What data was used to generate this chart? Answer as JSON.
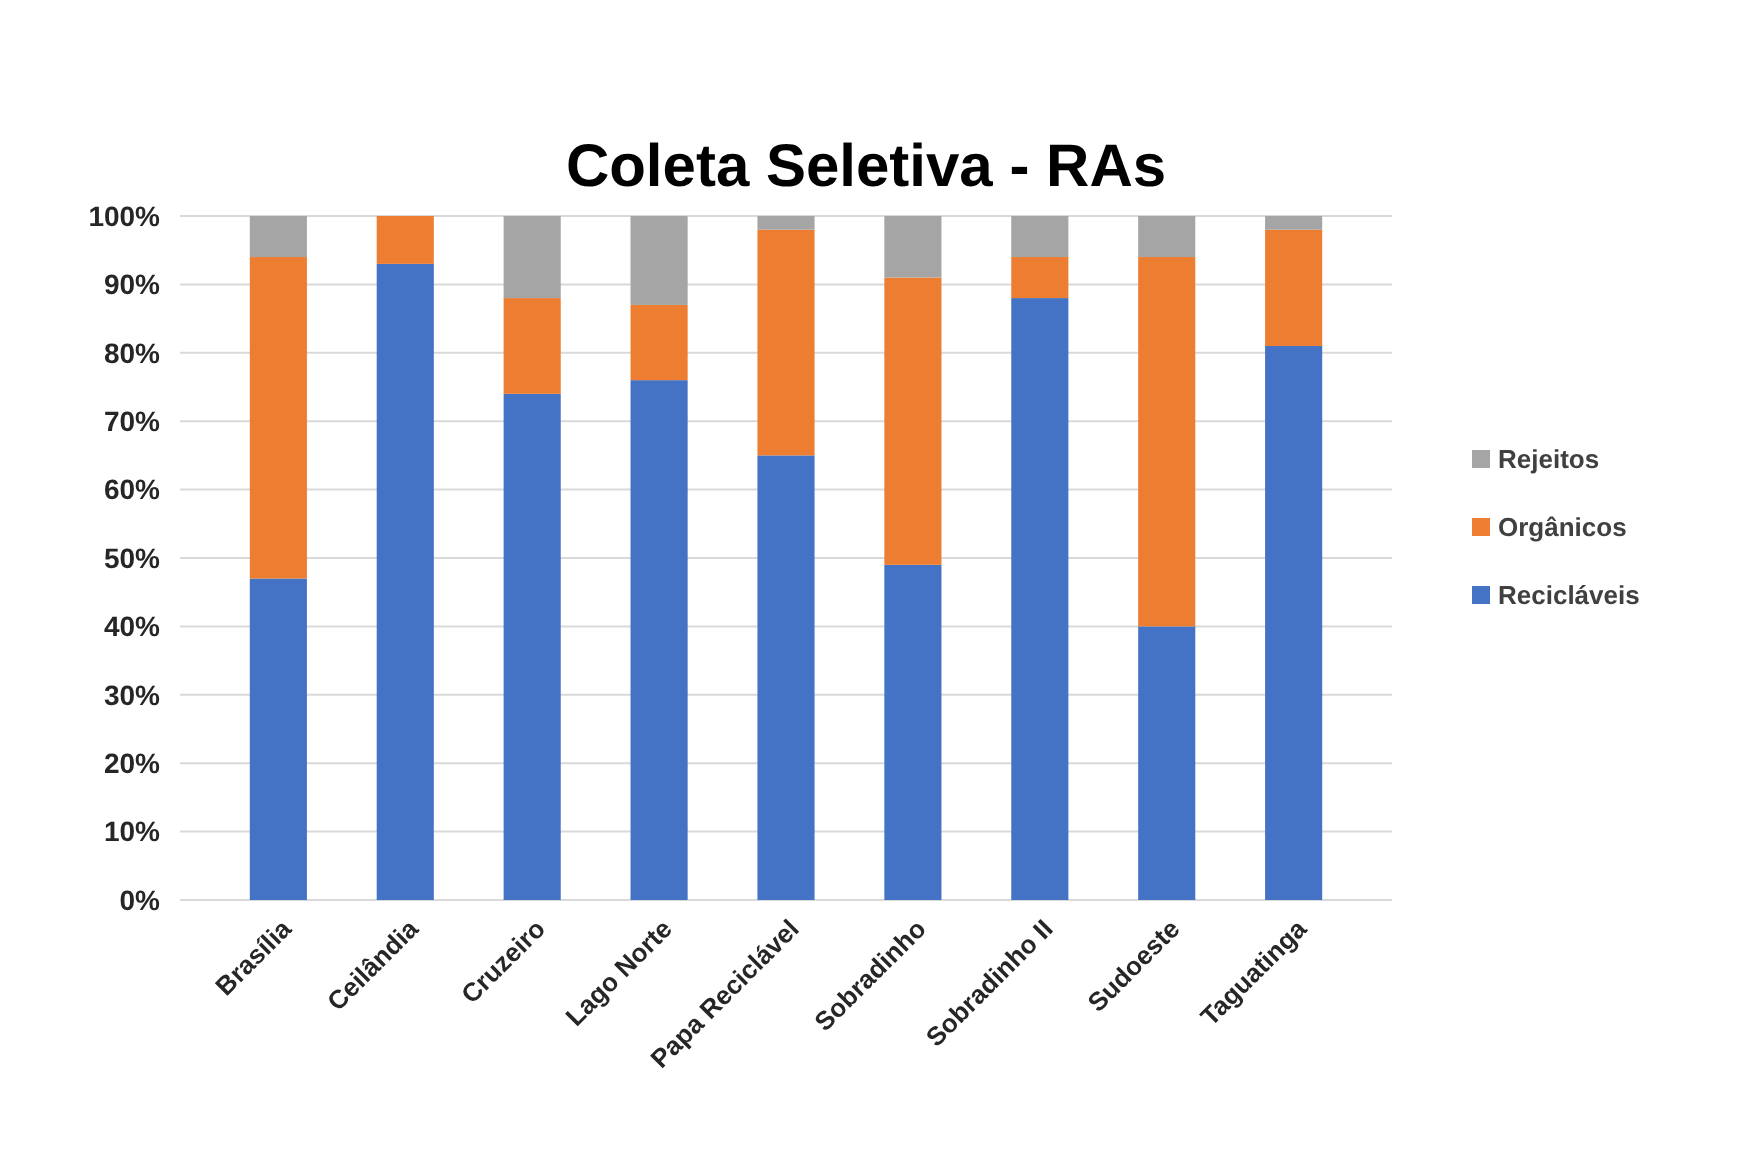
{
  "chart_data": {
    "type": "bar",
    "title": "Coleta Seletiva - RAs",
    "stacked": true,
    "grid": "y",
    "legend": "right",
    "categories": [
      "Brasília",
      "Ceilândia",
      "Cruzeiro",
      "Lago Norte",
      "Papa Reciclável",
      "Sobradinho",
      "Sobradinho II",
      "Sudoeste",
      "Taguatinga"
    ],
    "ylim": [
      0,
      100
    ],
    "yticks": [
      {
        "value": 0,
        "label": "0%"
      },
      {
        "value": 10,
        "label": "10%"
      },
      {
        "value": 20,
        "label": "20%"
      },
      {
        "value": 30,
        "label": "30%"
      },
      {
        "value": 40,
        "label": "40%"
      },
      {
        "value": 50,
        "label": "50%"
      },
      {
        "value": 60,
        "label": "60%"
      },
      {
        "value": 70,
        "label": "70%"
      },
      {
        "value": 80,
        "label": "80%"
      },
      {
        "value": 90,
        "label": "90%"
      },
      {
        "value": 100,
        "label": "100%"
      }
    ],
    "series": [
      {
        "name": "Recicláveis",
        "color": "#4472c4",
        "values": [
          47,
          93,
          74,
          76,
          65,
          49,
          88,
          40,
          81
        ]
      },
      {
        "name": "Orgânicos",
        "color": "#ed7d31",
        "values": [
          47,
          7,
          14,
          11,
          33,
          42,
          6,
          54,
          17
        ]
      },
      {
        "name": "Rejeitos",
        "color": "#a5a5a5",
        "values": [
          6,
          0,
          12,
          13,
          2,
          9,
          6,
          6,
          2
        ]
      }
    ]
  }
}
